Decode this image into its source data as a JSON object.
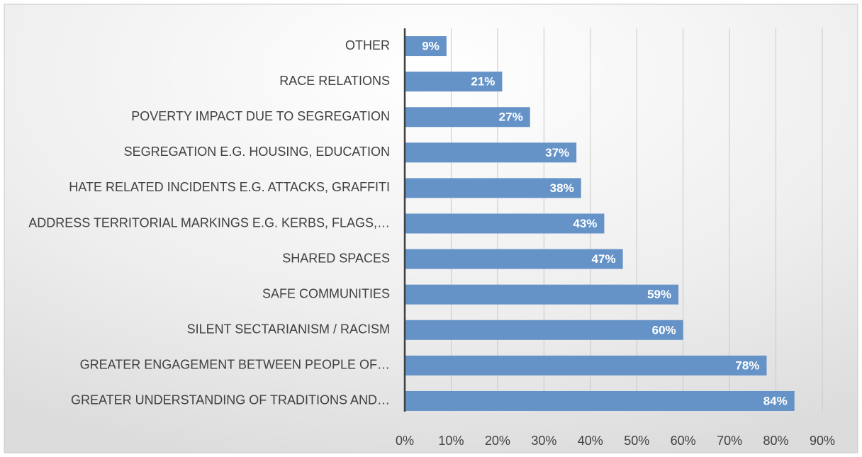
{
  "chart_data": {
    "type": "bar",
    "orientation": "horizontal",
    "categories": [
      "OTHER",
      "RACE RELATIONS",
      "POVERTY IMPACT DUE TO SEGREGATION",
      "SEGREGATION E.G. HOUSING, EDUCATION",
      "HATE RELATED INCIDENTS E.G. ATTACKS, GRAFFITI",
      "ADDRESS TERRITORIAL MARKINGS E.G. KERBS, FLAGS,…",
      "SHARED SPACES",
      "SAFE COMMUNITIES",
      "SILENT SECTARIANISM / RACISM",
      "GREATER ENGAGEMENT BETWEEN PEOPLE OF…",
      "GREATER UNDERSTANDING OF TRADITIONS AND…"
    ],
    "values": [
      9,
      21,
      27,
      37,
      38,
      43,
      47,
      59,
      60,
      78,
      84
    ],
    "value_labels": [
      "9%",
      "21%",
      "27%",
      "37%",
      "38%",
      "43%",
      "47%",
      "59%",
      "60%",
      "78%",
      "84%"
    ],
    "color": "#6593c8",
    "xlim": [
      0,
      90
    ],
    "xticks": [
      {
        "value": 0,
        "label": "0%"
      },
      {
        "value": 10,
        "label": "10%"
      },
      {
        "value": 20,
        "label": "20%"
      },
      {
        "value": 30,
        "label": "30%"
      },
      {
        "value": 40,
        "label": "40%"
      },
      {
        "value": 50,
        "label": "50%"
      },
      {
        "value": 60,
        "label": "60%"
      },
      {
        "value": 70,
        "label": "70%"
      },
      {
        "value": 80,
        "label": "80%"
      },
      {
        "value": 90,
        "label": "90%"
      }
    ],
    "grid": true
  }
}
